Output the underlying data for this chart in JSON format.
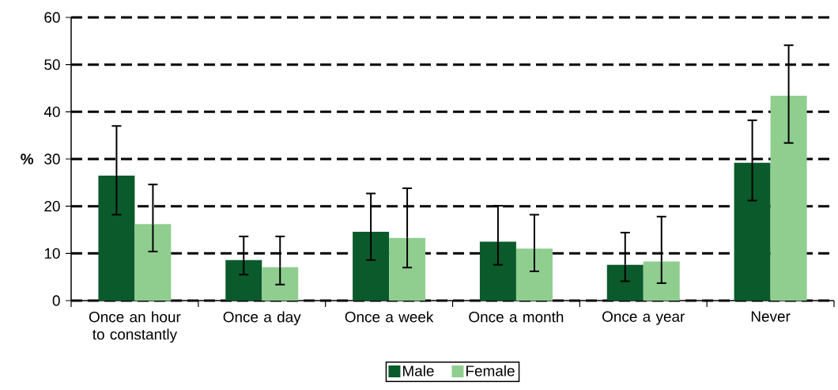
{
  "chart_data": {
    "type": "bar",
    "ylabel": "%",
    "categories": [
      "Once an hour to constantly",
      "Once a day",
      "Once a week",
      "Once a month",
      "Once a year",
      "Never"
    ],
    "series": [
      {
        "name": "Male",
        "color": "#0b5a2c",
        "values": [
          26.5,
          8.6,
          14.6,
          12.5,
          7.6,
          29.2
        ],
        "errors": [
          [
            18.2,
            37
          ],
          [
            5.5,
            13.6
          ],
          [
            8.6,
            22.7
          ],
          [
            7.6,
            20.1
          ],
          [
            4.1,
            14.4
          ],
          [
            21.2,
            38.2
          ]
        ]
      },
      {
        "name": "Female",
        "color": "#8fce8f",
        "values": [
          16.2,
          7.1,
          13.3,
          11,
          8.3,
          43.4
        ],
        "errors": [
          [
            10.4,
            24.6
          ],
          [
            3.4,
            13.6
          ],
          [
            7,
            23.8
          ],
          [
            6.2,
            18.2
          ],
          [
            3.7,
            17.8
          ],
          [
            33.4,
            54.1
          ]
        ]
      }
    ],
    "ylim": [
      0,
      60
    ],
    "yticks": [
      0,
      10,
      20,
      30,
      40,
      50,
      60
    ],
    "grid": "y",
    "legend": "bottom"
  }
}
